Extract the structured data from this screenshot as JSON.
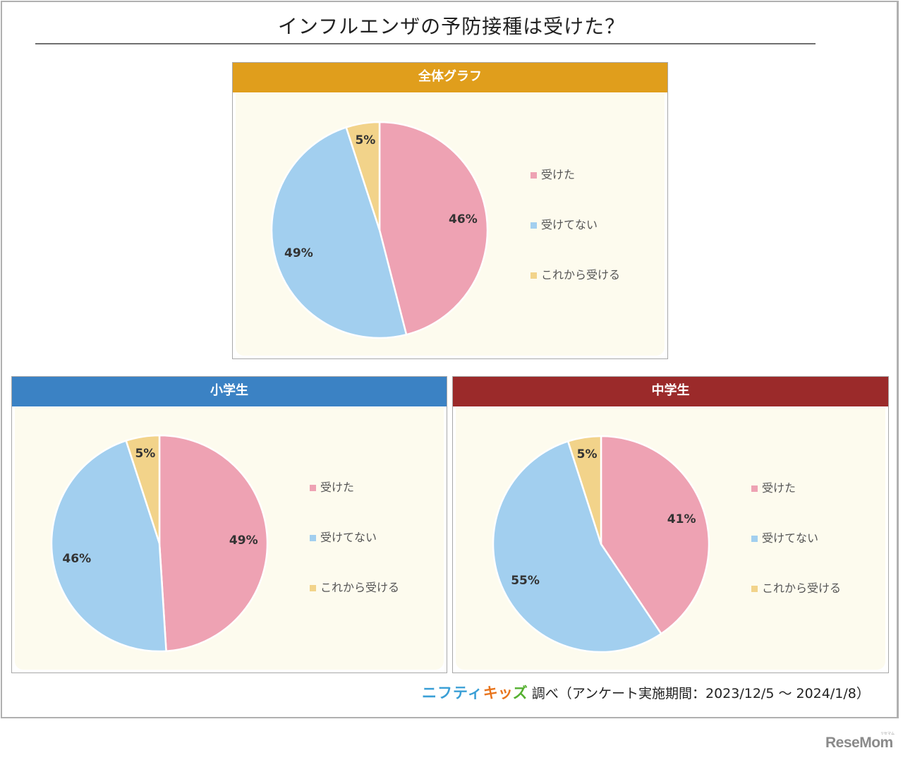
{
  "title": "インフルエンザの予防接種は受けた？",
  "colors": {
    "received": "#EEA2B3",
    "not_received": "#A2CFEF",
    "will_receive": "#F2D38A",
    "header_overall": "#E09E1C",
    "header_elementary": "#3B82C4",
    "header_junior": "#9B2A2A",
    "panel_bg": "#FDFBEE"
  },
  "legend": [
    "受けた",
    "受けてない",
    "これから受ける"
  ],
  "panels": [
    {
      "header": "全体グラフ",
      "labels": [
        "46%",
        "49%",
        "5%"
      ]
    },
    {
      "header": "小学生",
      "labels": [
        "49%",
        "46%",
        "5%"
      ]
    },
    {
      "header": "中学生",
      "labels": [
        "41%",
        "55%",
        "5%"
      ]
    }
  ],
  "footer": {
    "logo_nifty": "ニフティ",
    "logo_kids": [
      "キ",
      "ッ",
      "ズ"
    ],
    "text": "調べ（アンケート実施期間：2023/12/5 ～ 2024/1/8）"
  },
  "watermark": "ReseMom",
  "watermark_sub": "リセマム",
  "chart_data": [
    {
      "type": "pie",
      "title": "全体グラフ",
      "categories": [
        "受けた",
        "受けてない",
        "これから受ける"
      ],
      "values": [
        46,
        49,
        5
      ],
      "unit": "%",
      "legend_position": "right"
    },
    {
      "type": "pie",
      "title": "小学生",
      "categories": [
        "受けた",
        "受けてない",
        "これから受ける"
      ],
      "values": [
        49,
        46,
        5
      ],
      "unit": "%",
      "legend_position": "right"
    },
    {
      "type": "pie",
      "title": "中学生",
      "categories": [
        "受けた",
        "受けてない",
        "これから受ける"
      ],
      "values": [
        41,
        55,
        5
      ],
      "unit": "%",
      "legend_position": "right"
    }
  ]
}
